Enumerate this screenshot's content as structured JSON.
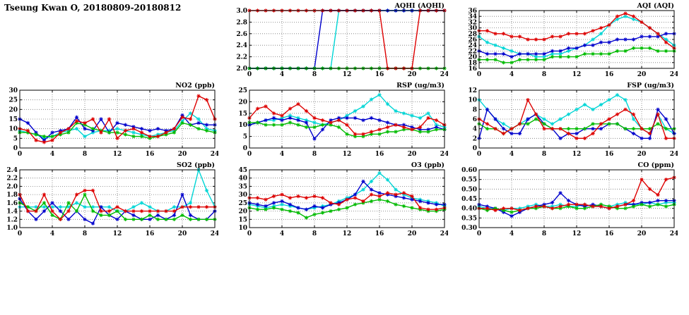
{
  "page_title": "Tseung Kwan O, 20180809-20180812",
  "x_hours": [
    0,
    1,
    2,
    3,
    4,
    5,
    6,
    7,
    8,
    9,
    10,
    11,
    12,
    13,
    14,
    15,
    16,
    17,
    18,
    19,
    20,
    21,
    22,
    23,
    24
  ],
  "colors": {
    "red": "#dd0000",
    "blue": "#0000cc",
    "green": "#00bb00",
    "cyan": "#00d5d5"
  },
  "chart_data": [
    {
      "id": "aqhi",
      "title": "AQHI (AQHI)",
      "type": "line",
      "xmin": 0,
      "xmax": 24,
      "xtick": 4,
      "ymin": 2.0,
      "ymax": 3.0,
      "ytick": 0.2,
      "ydec": 1,
      "series": [
        {
          "name": "cyan",
          "color": "#00d5d5",
          "values": [
            2,
            2,
            2,
            2,
            2,
            2,
            2,
            2,
            2,
            2,
            2,
            3,
            3,
            3,
            3,
            3,
            3,
            3,
            3,
            3,
            3,
            3,
            3,
            3,
            3
          ]
        },
        {
          "name": "blue",
          "color": "#0000cc",
          "values": [
            2,
            2,
            2,
            2,
            2,
            2,
            2,
            2,
            2,
            3,
            3,
            3,
            3,
            3,
            3,
            3,
            3,
            3,
            3,
            3,
            3,
            3,
            3,
            3,
            3
          ]
        },
        {
          "name": "green",
          "color": "#00bb00",
          "values": [
            2,
            2,
            2,
            2,
            2,
            2,
            2,
            2,
            2,
            2,
            2,
            2,
            2,
            2,
            2,
            2,
            2,
            2,
            2,
            2,
            2,
            2,
            2,
            2,
            2
          ]
        },
        {
          "name": "red",
          "color": "#dd0000",
          "values": [
            3,
            3,
            3,
            3,
            3,
            3,
            3,
            3,
            3,
            3,
            3,
            3,
            3,
            3,
            3,
            3,
            3,
            2,
            2,
            2,
            2,
            3,
            3,
            3,
            3
          ]
        }
      ]
    },
    {
      "id": "aqi",
      "title": "AQI (AQI)",
      "type": "line",
      "xmin": 0,
      "xmax": 24,
      "xtick": 4,
      "ymin": 16,
      "ymax": 36,
      "ytick": 2,
      "ydec": 0,
      "series": [
        {
          "name": "cyan",
          "color": "#00d5d5",
          "values": [
            27,
            25,
            24,
            23,
            22,
            21,
            21,
            20,
            20,
            21,
            21,
            22,
            23,
            24,
            26,
            28,
            31,
            33,
            34,
            33,
            32,
            30,
            28,
            26,
            24
          ]
        },
        {
          "name": "blue",
          "color": "#0000cc",
          "values": [
            22,
            21,
            21,
            21,
            20,
            21,
            21,
            21,
            21,
            22,
            22,
            23,
            23,
            24,
            24,
            25,
            25,
            26,
            26,
            26,
            27,
            27,
            27,
            28,
            28
          ]
        },
        {
          "name": "green",
          "color": "#00bb00",
          "values": [
            19,
            19,
            19,
            18,
            18,
            19,
            19,
            19,
            19,
            20,
            20,
            20,
            20,
            21,
            21,
            21,
            21,
            22,
            22,
            23,
            23,
            23,
            22,
            22,
            22
          ]
        },
        {
          "name": "red",
          "color": "#dd0000",
          "values": [
            29,
            29,
            28,
            28,
            27,
            27,
            26,
            26,
            26,
            27,
            27,
            28,
            28,
            28,
            29,
            30,
            31,
            34,
            35,
            34,
            32,
            30,
            28,
            25,
            23
          ]
        }
      ]
    },
    {
      "id": "no2",
      "title": "NO2 (ppb)",
      "type": "line",
      "xmin": 0,
      "xmax": 24,
      "xtick": 4,
      "ymin": 0,
      "ymax": 30,
      "ytick": 5,
      "ydec": 0,
      "series": [
        {
          "name": "cyan",
          "color": "#00d5d5",
          "values": [
            9,
            8,
            7,
            5,
            6,
            8,
            9,
            10,
            6,
            8,
            9,
            9,
            10,
            9,
            8,
            7,
            6,
            7,
            8,
            9,
            14,
            18,
            15,
            10,
            9
          ]
        },
        {
          "name": "blue",
          "color": "#0000cc",
          "values": [
            15,
            13,
            8,
            4,
            8,
            9,
            10,
            16,
            10,
            9,
            15,
            8,
            13,
            12,
            11,
            10,
            9,
            10,
            9,
            10,
            17,
            12,
            13,
            12,
            12
          ]
        },
        {
          "name": "green",
          "color": "#00bb00",
          "values": [
            8,
            8,
            7,
            6,
            6,
            7,
            8,
            13,
            12,
            10,
            9,
            8,
            8,
            7,
            6,
            6,
            5,
            6,
            7,
            8,
            13,
            12,
            10,
            9,
            8
          ]
        },
        {
          "name": "red",
          "color": "#dd0000",
          "values": [
            10,
            9,
            4,
            3,
            4,
            8,
            10,
            14,
            13,
            15,
            8,
            15,
            5,
            9,
            10,
            8,
            6,
            6,
            8,
            10,
            16,
            15,
            27,
            25,
            15
          ]
        }
      ]
    },
    {
      "id": "rsp",
      "title": "RSP (ug/m3)",
      "type": "line",
      "xmin": 0,
      "xmax": 24,
      "xtick": 4,
      "ymin": 0,
      "ymax": 25,
      "ytick": 5,
      "ydec": 0,
      "series": [
        {
          "name": "cyan",
          "color": "#00d5d5",
          "values": [
            10,
            11,
            12,
            12,
            13,
            14,
            13,
            12,
            11,
            10,
            11,
            12,
            14,
            16,
            18,
            21,
            23,
            19,
            16,
            15,
            14,
            13,
            15,
            10,
            9
          ]
        },
        {
          "name": "blue",
          "color": "#0000cc",
          "values": [
            10,
            11,
            12,
            13,
            12,
            13,
            12,
            11,
            4,
            8,
            12,
            13,
            13,
            13,
            12,
            13,
            12,
            11,
            10,
            10,
            9,
            8,
            8,
            9,
            8
          ]
        },
        {
          "name": "green",
          "color": "#00bb00",
          "values": [
            11,
            11,
            10,
            10,
            10,
            11,
            10,
            9,
            9,
            10,
            10,
            9,
            6,
            5,
            5,
            6,
            6,
            7,
            7,
            8,
            8,
            7,
            7,
            8,
            8
          ]
        },
        {
          "name": "red",
          "color": "#dd0000",
          "values": [
            13,
            17,
            18,
            15,
            14,
            17,
            19,
            16,
            13,
            12,
            11,
            12,
            10,
            6,
            6,
            7,
            8,
            9,
            10,
            9,
            8,
            9,
            13,
            12,
            10
          ]
        }
      ]
    },
    {
      "id": "fsp",
      "title": "FSP (ug/m3)",
      "type": "line",
      "xmin": 0,
      "xmax": 24,
      "xtick": 4,
      "ymin": 0,
      "ymax": 12,
      "ytick": 2,
      "ydec": 0,
      "series": [
        {
          "name": "cyan",
          "color": "#00d5d5",
          "values": [
            10,
            8,
            6,
            5,
            4,
            5,
            6,
            7,
            6,
            5,
            6,
            7,
            8,
            9,
            8,
            9,
            10,
            11,
            10,
            6,
            4,
            3,
            7,
            4,
            3
          ]
        },
        {
          "name": "blue",
          "color": "#0000cc",
          "values": [
            2,
            8,
            6,
            4,
            3,
            3,
            6,
            7,
            5,
            4,
            2,
            3,
            3,
            4,
            4,
            4,
            5,
            5,
            4,
            3,
            2,
            2,
            8,
            6,
            3
          ]
        },
        {
          "name": "green",
          "color": "#00bb00",
          "values": [
            5,
            4,
            4,
            3,
            4,
            5,
            5,
            6,
            5,
            4,
            4,
            4,
            4,
            4,
            5,
            5,
            5,
            5,
            4,
            4,
            4,
            4,
            5,
            4,
            4
          ]
        },
        {
          "name": "red",
          "color": "#dd0000",
          "values": [
            6,
            5,
            4,
            3,
            4,
            5,
            10,
            7,
            4,
            4,
            4,
            3,
            2,
            2,
            3,
            5,
            6,
            7,
            8,
            7,
            4,
            3,
            7,
            2,
            2
          ]
        }
      ]
    },
    {
      "id": "so2",
      "title": "SO2 (ppb)",
      "type": "line",
      "xmin": 0,
      "xmax": 24,
      "xtick": 4,
      "ymin": 1.0,
      "ymax": 2.4,
      "ytick": 0.2,
      "ydec": 1,
      "series": [
        {
          "name": "cyan",
          "color": "#00d5d5",
          "values": [
            1.5,
            1.5,
            1.5,
            1.5,
            1.5,
            1.5,
            1.5,
            1.6,
            1.5,
            1.5,
            1.5,
            1.5,
            1.4,
            1.4,
            1.5,
            1.6,
            1.5,
            1.4,
            1.4,
            1.5,
            1.5,
            1.6,
            2.4,
            1.9,
            1.5
          ]
        },
        {
          "name": "blue",
          "color": "#0000cc",
          "values": [
            1.7,
            1.4,
            1.2,
            1.4,
            1.6,
            1.4,
            1.2,
            1.4,
            1.2,
            1.1,
            1.5,
            1.3,
            1.2,
            1.4,
            1.3,
            1.2,
            1.2,
            1.3,
            1.2,
            1.3,
            1.8,
            1.3,
            1.2,
            1.2,
            1.4
          ]
        },
        {
          "name": "green",
          "color": "#00bb00",
          "values": [
            1.6,
            1.5,
            1.4,
            1.6,
            1.3,
            1.2,
            1.6,
            1.4,
            1.8,
            1.4,
            1.3,
            1.3,
            1.4,
            1.2,
            1.2,
            1.2,
            1.3,
            1.2,
            1.2,
            1.2,
            1.3,
            1.2,
            1.2,
            1.2,
            1.2
          ]
        },
        {
          "name": "red",
          "color": "#dd0000",
          "values": [
            1.8,
            1.4,
            1.4,
            1.8,
            1.4,
            1.2,
            1.4,
            1.8,
            1.9,
            1.9,
            1.4,
            1.4,
            1.5,
            1.4,
            1.4,
            1.4,
            1.4,
            1.4,
            1.4,
            1.4,
            1.5,
            1.5,
            1.5,
            1.5,
            1.5
          ]
        }
      ]
    },
    {
      "id": "o3",
      "title": "O3 (ppb)",
      "type": "line",
      "xmin": 0,
      "xmax": 24,
      "xtick": 4,
      "ymin": 10,
      "ymax": 45,
      "ytick": 5,
      "ydec": 0,
      "series": [
        {
          "name": "cyan",
          "color": "#00d5d5",
          "values": [
            24,
            23,
            22,
            23,
            24,
            23,
            22,
            21,
            22,
            23,
            24,
            26,
            28,
            30,
            33,
            38,
            43,
            39,
            33,
            30,
            28,
            27,
            26,
            25,
            23
          ]
        },
        {
          "name": "blue",
          "color": "#0000cc",
          "values": [
            25,
            24,
            23,
            25,
            26,
            24,
            22,
            21,
            23,
            22,
            24,
            25,
            27,
            30,
            38,
            33,
            31,
            30,
            29,
            28,
            27,
            26,
            25,
            24,
            24
          ]
        },
        {
          "name": "green",
          "color": "#00bb00",
          "values": [
            22,
            21,
            21,
            22,
            21,
            20,
            19,
            16,
            18,
            19,
            20,
            21,
            22,
            24,
            25,
            26,
            27,
            26,
            24,
            23,
            22,
            21,
            20,
            20,
            21
          ]
        },
        {
          "name": "red",
          "color": "#dd0000",
          "values": [
            28,
            28,
            27,
            29,
            30,
            28,
            29,
            28,
            29,
            28,
            25,
            24,
            27,
            28,
            26,
            30,
            29,
            31,
            30,
            31,
            29,
            22,
            21,
            21,
            22
          ]
        }
      ]
    },
    {
      "id": "co",
      "title": "CO (ppm)",
      "type": "line",
      "xmin": 0,
      "xmax": 24,
      "xtick": 4,
      "ymin": 0.3,
      "ymax": 0.6,
      "ytick": 0.05,
      "ydec": 2,
      "series": [
        {
          "name": "cyan",
          "color": "#00d5d5",
          "values": [
            0.41,
            0.4,
            0.4,
            0.39,
            0.4,
            0.4,
            0.41,
            0.42,
            0.41,
            0.41,
            0.42,
            0.41,
            0.41,
            0.42,
            0.41,
            0.42,
            0.41,
            0.42,
            0.43,
            0.42,
            0.42,
            0.43,
            0.42,
            0.43,
            0.43
          ]
        },
        {
          "name": "blue",
          "color": "#0000cc",
          "values": [
            0.42,
            0.41,
            0.4,
            0.38,
            0.36,
            0.38,
            0.4,
            0.41,
            0.42,
            0.43,
            0.48,
            0.44,
            0.42,
            0.41,
            0.42,
            0.41,
            0.4,
            0.41,
            0.42,
            0.42,
            0.43,
            0.43,
            0.44,
            0.44,
            0.44
          ]
        },
        {
          "name": "green",
          "color": "#00bb00",
          "values": [
            0.4,
            0.39,
            0.4,
            0.39,
            0.38,
            0.39,
            0.4,
            0.4,
            0.41,
            0.4,
            0.4,
            0.41,
            0.4,
            0.4,
            0.41,
            0.42,
            0.41,
            0.4,
            0.4,
            0.41,
            0.42,
            0.41,
            0.42,
            0.41,
            0.42
          ]
        },
        {
          "name": "red",
          "color": "#dd0000",
          "values": [
            0.4,
            0.4,
            0.39,
            0.4,
            0.4,
            0.39,
            0.4,
            0.41,
            0.41,
            0.4,
            0.41,
            0.42,
            0.42,
            0.42,
            0.41,
            0.41,
            0.4,
            0.41,
            0.42,
            0.44,
            0.55,
            0.5,
            0.47,
            0.55,
            0.56
          ]
        }
      ]
    }
  ]
}
